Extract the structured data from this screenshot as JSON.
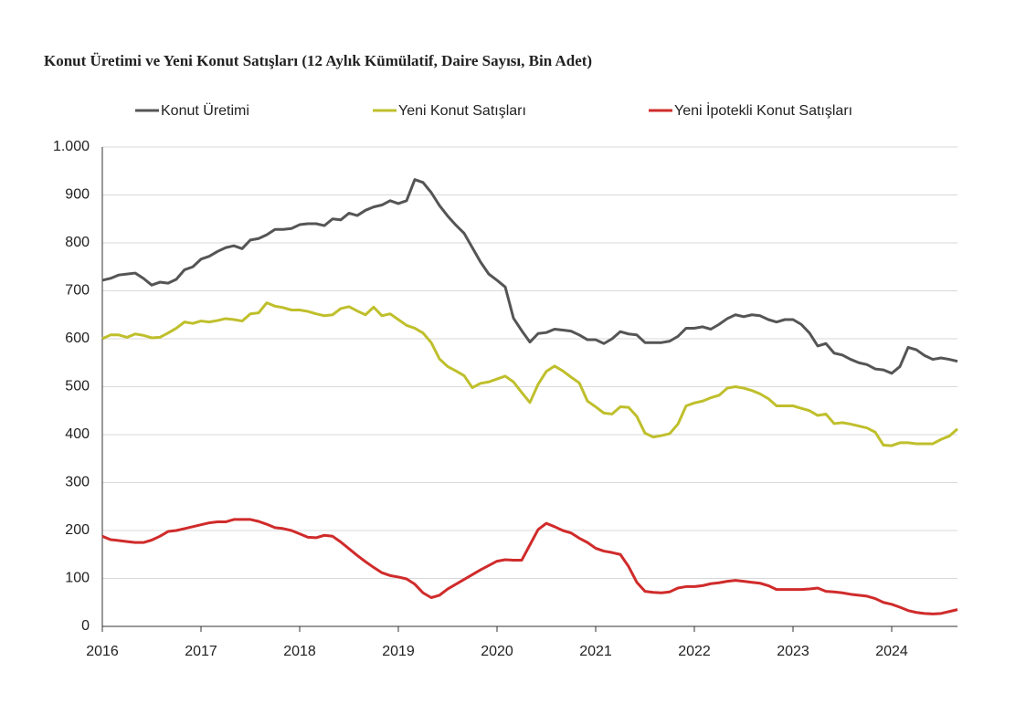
{
  "chart_data": {
    "type": "line",
    "title": "Konut Üretimi ve Yeni Konut Satışları (12 Aylık Kümülatif, Daire Sayısı, Bin Adet)",
    "categories": [
      "2016",
      null,
      null,
      null,
      null,
      null,
      null,
      null,
      null,
      null,
      null,
      null,
      "2017",
      null,
      null,
      null,
      null,
      null,
      null,
      null,
      null,
      null,
      null,
      null,
      "2018",
      null,
      null,
      null,
      null,
      null,
      null,
      null,
      null,
      null,
      null,
      null,
      "2019",
      null,
      null,
      null,
      null,
      null,
      null,
      null,
      null,
      null,
      null,
      null,
      "2020",
      null,
      null,
      null,
      null,
      null,
      null,
      null,
      null,
      null,
      null,
      null,
      "2021",
      null,
      null,
      null,
      null,
      null,
      null,
      null,
      null,
      null,
      null,
      null,
      "2022",
      null,
      null,
      null,
      null,
      null,
      null,
      null,
      null,
      null,
      null,
      null,
      "2023",
      null,
      null,
      null,
      null,
      null,
      null,
      null,
      null,
      null,
      null,
      null,
      "2024",
      null,
      null,
      null,
      null,
      null,
      null,
      null,
      null
    ],
    "series": [
      {
        "name": "Konut Üretimi",
        "color": "#555555",
        "values": [
          722,
          726,
          733,
          735,
          737,
          726,
          712,
          718,
          716,
          724,
          744,
          750,
          766,
          772,
          782,
          790,
          794,
          788,
          806,
          809,
          817,
          828,
          828,
          830,
          838,
          840,
          840,
          836,
          850,
          848,
          862,
          857,
          868,
          875,
          879,
          888,
          882,
          888,
          932,
          926,
          905,
          878,
          856,
          837,
          820,
          790,
          760,
          735,
          722,
          708,
          643,
          617,
          593,
          611,
          613,
          620,
          618,
          616,
          608,
          598,
          598,
          590,
          600,
          615,
          610,
          608,
          592,
          592,
          592,
          595,
          605,
          622,
          622,
          625,
          620,
          630,
          642,
          650,
          646,
          650,
          648,
          640,
          635,
          640,
          640,
          630,
          612,
          585,
          590,
          570,
          566,
          557,
          550,
          546,
          537,
          535,
          528,
          542,
          582,
          577,
          565,
          557,
          560,
          557,
          553
        ]
      },
      {
        "name": "Yeni Konut Satışları",
        "color": "#bfbf2c",
        "values": [
          600,
          608,
          608,
          603,
          610,
          607,
          602,
          603,
          612,
          622,
          635,
          632,
          637,
          635,
          638,
          642,
          640,
          637,
          652,
          654,
          675,
          668,
          665,
          660,
          660,
          657,
          652,
          648,
          650,
          663,
          667,
          658,
          650,
          666,
          648,
          652,
          640,
          628,
          622,
          612,
          592,
          558,
          542,
          533,
          523,
          498,
          507,
          510,
          516,
          522,
          510,
          488,
          467,
          505,
          532,
          543,
          533,
          520,
          508,
          470,
          458,
          445,
          443,
          458,
          457,
          438,
          403,
          395,
          398,
          402,
          422,
          460,
          466,
          470,
          477,
          482,
          497,
          500,
          497,
          492,
          485,
          475,
          460,
          460,
          460,
          455,
          450,
          440,
          443,
          423,
          425,
          422,
          418,
          414,
          405,
          378,
          377,
          383,
          383,
          381,
          381,
          381,
          390,
          397,
          412
        ]
      },
      {
        "name": "Yeni  İpotekli Konut Satışları",
        "color": "#d02b2b",
        "values": [
          188,
          181,
          179,
          177,
          175,
          175,
          180,
          188,
          198,
          200,
          204,
          208,
          212,
          216,
          218,
          218,
          223,
          223,
          223,
          219,
          213,
          206,
          204,
          200,
          193,
          186,
          185,
          190,
          188,
          176,
          162,
          148,
          135,
          123,
          112,
          106,
          103,
          99,
          88,
          70,
          60,
          65,
          78,
          88,
          98,
          108,
          118,
          127,
          136,
          139,
          138,
          138,
          170,
          202,
          215,
          208,
          200,
          195,
          184,
          175,
          163,
          157,
          154,
          150,
          125,
          92,
          73,
          71,
          70,
          72,
          80,
          83,
          83,
          85,
          89,
          91,
          94,
          96,
          94,
          92,
          90,
          85,
          77,
          77,
          77,
          77,
          78,
          80,
          73,
          72,
          70,
          67,
          65,
          63,
          58,
          50,
          46,
          40,
          33,
          29,
          27,
          26,
          27,
          31,
          35
        ]
      }
    ],
    "ylim": [
      0,
      1000
    ],
    "yticks": [
      0,
      100,
      200,
      300,
      400,
      500,
      600,
      700,
      800,
      900,
      {
        "value": 1000,
        "label": "1.000"
      }
    ],
    "grid": true
  }
}
